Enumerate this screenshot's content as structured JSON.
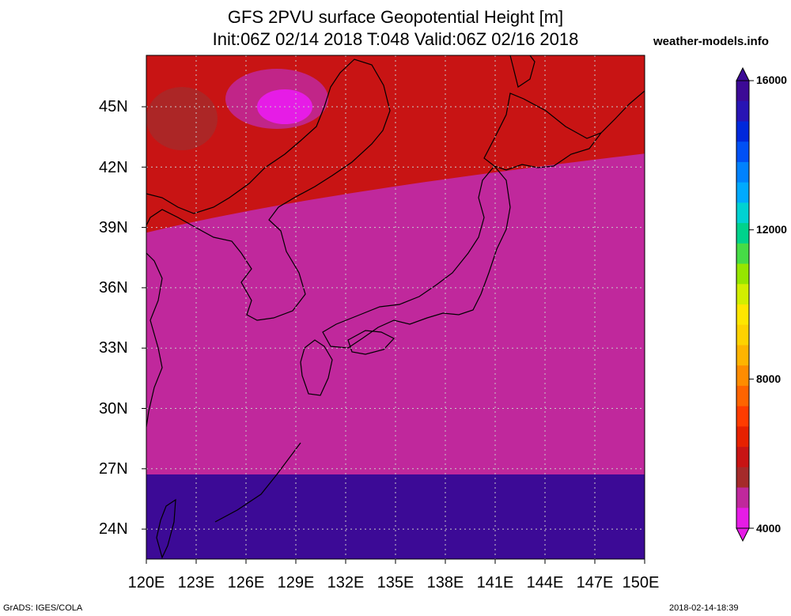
{
  "header": {
    "title_line1": "GFS 2PVU surface Geopotential Height [m]",
    "title_line2": "Init:06Z 02/14 2018 T:048 Valid:06Z 02/16 2018",
    "site": "weather-models.info"
  },
  "map": {
    "lon_labels": [
      "120E",
      "123E",
      "126E",
      "129E",
      "132E",
      "135E",
      "138E",
      "141E",
      "144E",
      "147E",
      "150E"
    ],
    "lat_labels": [
      "45N",
      "42N",
      "39N",
      "36N",
      "33N",
      "30N",
      "27N",
      "24N"
    ],
    "lon_range": [
      120,
      150
    ],
    "lat_range": [
      22.4,
      47.6
    ],
    "grid": "dotted",
    "palette": [
      "#e61ce6",
      "#c0289c",
      "#a52a2a",
      "#c81414",
      "#e62100",
      "#ff3c00",
      "#ff6400",
      "#ff8c00",
      "#ffb400",
      "#ffd200",
      "#ffe600",
      "#d2ee00",
      "#96e600",
      "#46dc46",
      "#00d28c",
      "#00d2d2",
      "#00aaff",
      "#0082ff",
      "#0050f5",
      "#0028dc",
      "#2814b4",
      "#3c0a96"
    ]
  },
  "colorbar": {
    "labels": [
      "16000",
      "12000",
      "8000",
      "4000"
    ],
    "min": 4000,
    "max": 16000
  },
  "footer": {
    "left": "GrADS: IGES/COLA",
    "right": "2018-02-14-18:39"
  }
}
